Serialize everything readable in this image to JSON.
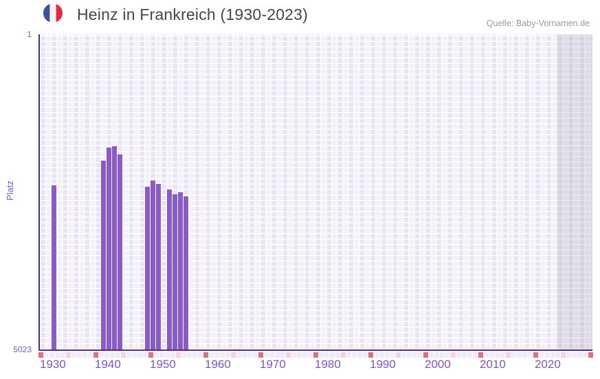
{
  "header": {
    "title": "Heinz in Frankreich (1930-2023)",
    "flag_icon": "france-flag-icon",
    "source": "Quelle: Baby-Vornamen.de"
  },
  "chart_data": {
    "type": "bar",
    "title": "Heinz in Frankreich (1930-2023)",
    "ylabel": "Platz",
    "y_axis": {
      "top_tick_label": "1",
      "bottom_tick_label": "5023",
      "min": 1,
      "max": 5023,
      "inverted": true
    },
    "x_axis": {
      "start_year": 1928,
      "end_year": 2028,
      "tick_labels": [
        "1930",
        "1940",
        "1950",
        "1960",
        "1970",
        "1980",
        "1990",
        "2000",
        "2010",
        "2020"
      ],
      "future_band_start_col": 94
    },
    "bars": [
      {
        "year": 1930,
        "rank": 2408
      },
      {
        "year": 1939,
        "rank": 2016
      },
      {
        "year": 1940,
        "rank": 1809
      },
      {
        "year": 1941,
        "rank": 1787
      },
      {
        "year": 1942,
        "rank": 1918
      },
      {
        "year": 1947,
        "rank": 2427
      },
      {
        "year": 1948,
        "rank": 2335
      },
      {
        "year": 1949,
        "rank": 2387
      },
      {
        "year": 1951,
        "rank": 2477
      },
      {
        "year": 1952,
        "rank": 2550
      },
      {
        "year": 1953,
        "rank": 2514
      },
      {
        "year": 1954,
        "rank": 2586
      }
    ],
    "legend": null,
    "grid": "checkered 1-year columns, alternating lavender shades",
    "colors": {
      "bar": "#8a5bc6",
      "axis_line": "#4e2c88",
      "axis_label_purple": "#7d55c3",
      "bg_cell_light": "#f3f0fa",
      "bg_cell_dark": "#e9e4f5",
      "tick_red": "#e0717c",
      "tick_pink": "#f5d3dc",
      "tick_light": "#efecf7",
      "title_text": "#42454f",
      "source_text": "#9b9b9b",
      "flag_blue": "#3c4fa0",
      "flag_white": "#f5f5f5",
      "flag_red": "#e5293e"
    }
  }
}
